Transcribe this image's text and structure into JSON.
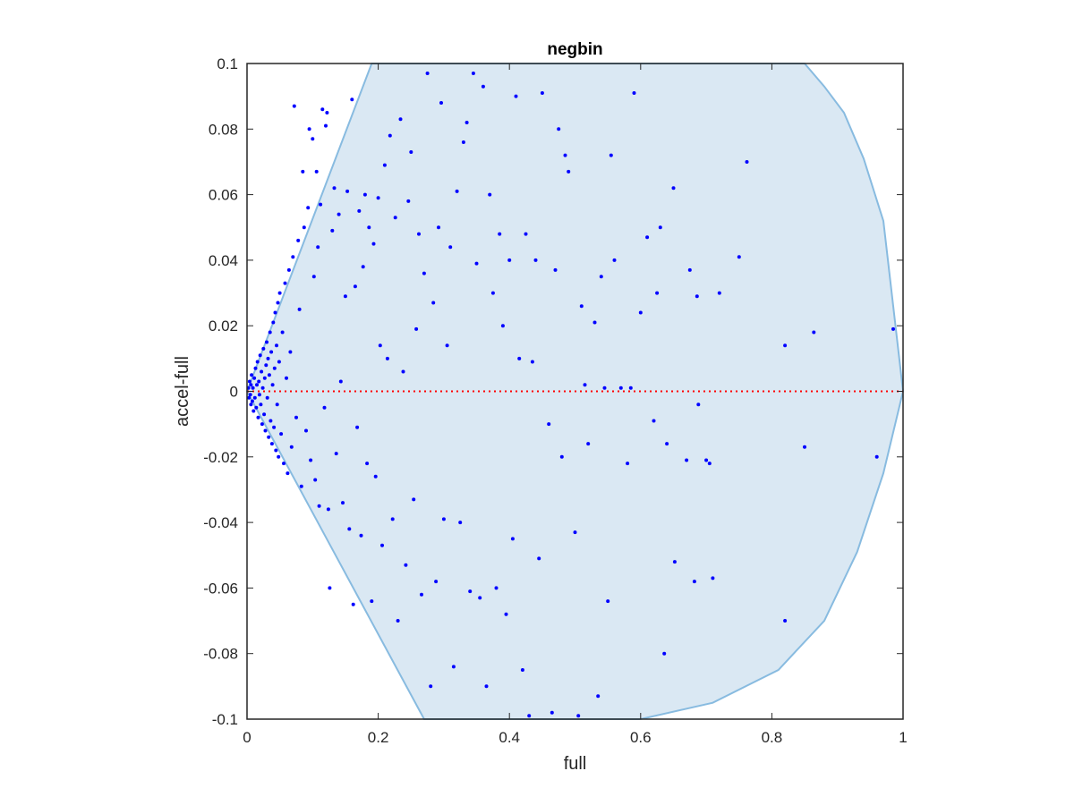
{
  "chart_data": {
    "type": "scatter",
    "title": "negbin",
    "xlabel": "full",
    "ylabel": "accel-full",
    "xlim": [
      0,
      1
    ],
    "ylim": [
      -0.1,
      0.1
    ],
    "xticks": [
      "0",
      "0.2",
      "0.4",
      "0.6",
      "0.8",
      "1"
    ],
    "yticks": [
      "0.1",
      "0.08",
      "0.06",
      "0.04",
      "0.02",
      "0",
      "-0.02",
      "-0.04",
      "-0.06",
      "-0.08",
      "-0.1"
    ],
    "grid": false,
    "legend": "none",
    "reference_line": {
      "y": 0,
      "style": "dotted",
      "color": "#ff0000"
    },
    "region": {
      "fill": "#dae8f3",
      "edge": "#88bbe0",
      "polygon": [
        [
          0,
          0
        ],
        [
          0.19,
          0.1
        ],
        [
          0.85,
          0.1
        ],
        [
          0.88,
          0.093
        ],
        [
          0.91,
          0.085
        ],
        [
          0.94,
          0.071
        ],
        [
          0.97,
          0.052
        ],
        [
          1,
          0
        ],
        [
          0.97,
          -0.025
        ],
        [
          0.93,
          -0.049
        ],
        [
          0.88,
          -0.07
        ],
        [
          0.81,
          -0.085
        ],
        [
          0.71,
          -0.095
        ],
        [
          0.6,
          -0.1
        ],
        [
          0.27,
          -0.1
        ]
      ]
    },
    "marker_color": "#0000ff",
    "series": [
      {
        "points": [
          [
            0.002,
            0.001
          ],
          [
            0.003,
            -0.002
          ],
          [
            0.004,
            0.003
          ],
          [
            0.005,
            -0.001
          ],
          [
            0.006,
            0.002
          ],
          [
            0.006,
            -0.004
          ],
          [
            0.007,
            0.005
          ],
          [
            0.008,
            -0.003
          ],
          [
            0.009,
            0.001
          ],
          [
            0.01,
            -0.006
          ],
          [
            0.011,
            0.004
          ],
          [
            0.012,
            -0.002
          ],
          [
            0.013,
            0.007
          ],
          [
            0.014,
            -0.005
          ],
          [
            0.015,
            0.002
          ],
          [
            0.016,
            0.009
          ],
          [
            0.017,
            -0.008
          ],
          [
            0.018,
            0.003
          ],
          [
            0.019,
            -0.001
          ],
          [
            0.02,
            0.011
          ],
          [
            0.021,
            -0.004
          ],
          [
            0.022,
            0.006
          ],
          [
            0.023,
            -0.01
          ],
          [
            0.024,
            0.001
          ],
          [
            0.025,
            0.013
          ],
          [
            0.026,
            -0.007
          ],
          [
            0.027,
            0.004
          ],
          [
            0.028,
            -0.012
          ],
          [
            0.029,
            0.008
          ],
          [
            0.03,
            0.015
          ],
          [
            0.031,
            -0.002
          ],
          [
            0.032,
            0.01
          ],
          [
            0.033,
            -0.014
          ],
          [
            0.034,
            0.005
          ],
          [
            0.035,
            0.018
          ],
          [
            0.036,
            -0.009
          ],
          [
            0.037,
            0.012
          ],
          [
            0.038,
            -0.016
          ],
          [
            0.039,
            0.002
          ],
          [
            0.04,
            0.021
          ],
          [
            0.041,
            -0.011
          ],
          [
            0.042,
            0.007
          ],
          [
            0.043,
            0.024
          ],
          [
            0.044,
            -0.018
          ],
          [
            0.045,
            0.014
          ],
          [
            0.046,
            -0.004
          ],
          [
            0.047,
            0.027
          ],
          [
            0.048,
            -0.02
          ],
          [
            0.049,
            0.009
          ],
          [
            0.05,
            0.03
          ],
          [
            0.052,
            -0.013
          ],
          [
            0.054,
            0.018
          ],
          [
            0.056,
            -0.022
          ],
          [
            0.058,
            0.033
          ],
          [
            0.06,
            0.004
          ],
          [
            0.062,
            -0.025
          ],
          [
            0.064,
            0.037
          ],
          [
            0.066,
            0.012
          ],
          [
            0.068,
            -0.017
          ],
          [
            0.07,
            0.041
          ],
          [
            0.072,
            0.087
          ],
          [
            0.075,
            -0.008
          ],
          [
            0.078,
            0.046
          ],
          [
            0.08,
            0.025
          ],
          [
            0.083,
            -0.029
          ],
          [
            0.085,
            0.067
          ],
          [
            0.087,
            0.05
          ],
          [
            0.09,
            -0.012
          ],
          [
            0.093,
            0.056
          ],
          [
            0.095,
            0.08
          ],
          [
            0.097,
            -0.021
          ],
          [
            0.1,
            0.077
          ],
          [
            0.102,
            0.035
          ],
          [
            0.104,
            -0.027
          ],
          [
            0.106,
            0.067
          ],
          [
            0.108,
            0.044
          ],
          [
            0.11,
            -0.035
          ],
          [
            0.112,
            0.057
          ],
          [
            0.115,
            0.086
          ],
          [
            0.118,
            -0.005
          ],
          [
            0.12,
            0.081
          ],
          [
            0.122,
            0.085
          ],
          [
            0.124,
            -0.036
          ],
          [
            0.126,
            -0.06
          ],
          [
            0.13,
            0.049
          ],
          [
            0.133,
            0.062
          ],
          [
            0.136,
            -0.019
          ],
          [
            0.14,
            0.054
          ],
          [
            0.143,
            0.003
          ],
          [
            0.146,
            -0.034
          ],
          [
            0.15,
            0.029
          ],
          [
            0.153,
            0.061
          ],
          [
            0.156,
            -0.042
          ],
          [
            0.16,
            0.089
          ],
          [
            0.162,
            -0.065
          ],
          [
            0.165,
            0.032
          ],
          [
            0.168,
            -0.011
          ],
          [
            0.171,
            0.055
          ],
          [
            0.174,
            -0.044
          ],
          [
            0.177,
            0.038
          ],
          [
            0.18,
            0.06
          ],
          [
            0.183,
            -0.022
          ],
          [
            0.186,
            0.05
          ],
          [
            0.19,
            -0.064
          ],
          [
            0.193,
            0.045
          ],
          [
            0.196,
            -0.026
          ],
          [
            0.2,
            0.059
          ],
          [
            0.203,
            0.014
          ],
          [
            0.206,
            -0.047
          ],
          [
            0.21,
            0.069
          ],
          [
            0.214,
            0.01
          ],
          [
            0.218,
            0.078
          ],
          [
            0.222,
            -0.039
          ],
          [
            0.226,
            0.053
          ],
          [
            0.23,
            -0.07
          ],
          [
            0.234,
            0.083
          ],
          [
            0.238,
            0.006
          ],
          [
            0.242,
            -0.053
          ],
          [
            0.246,
            0.058
          ],
          [
            0.25,
            0.073
          ],
          [
            0.254,
            -0.033
          ],
          [
            0.258,
            0.019
          ],
          [
            0.262,
            0.048
          ],
          [
            0.266,
            -0.062
          ],
          [
            0.27,
            0.036
          ],
          [
            0.275,
            0.097
          ],
          [
            0.28,
            -0.09
          ],
          [
            0.284,
            0.027
          ],
          [
            0.288,
            -0.058
          ],
          [
            0.292,
            0.05
          ],
          [
            0.296,
            0.088
          ],
          [
            0.3,
            -0.039
          ],
          [
            0.305,
            0.014
          ],
          [
            0.31,
            0.044
          ],
          [
            0.315,
            -0.084
          ],
          [
            0.32,
            0.061
          ],
          [
            0.325,
            -0.04
          ],
          [
            0.33,
            0.076
          ],
          [
            0.335,
            0.082
          ],
          [
            0.34,
            -0.061
          ],
          [
            0.345,
            0.097
          ],
          [
            0.35,
            0.039
          ],
          [
            0.355,
            -0.063
          ],
          [
            0.36,
            0.093
          ],
          [
            0.365,
            -0.09
          ],
          [
            0.37,
            0.06
          ],
          [
            0.375,
            0.03
          ],
          [
            0.38,
            -0.06
          ],
          [
            0.385,
            0.048
          ],
          [
            0.39,
            0.02
          ],
          [
            0.395,
            -0.068
          ],
          [
            0.4,
            0.04
          ],
          [
            0.405,
            -0.045
          ],
          [
            0.41,
            0.09
          ],
          [
            0.415,
            0.01
          ],
          [
            0.42,
            -0.085
          ],
          [
            0.425,
            0.048
          ],
          [
            0.43,
            -0.099
          ],
          [
            0.435,
            0.009
          ],
          [
            0.44,
            0.04
          ],
          [
            0.445,
            -0.051
          ],
          [
            0.45,
            0.091
          ],
          [
            0.46,
            -0.01
          ],
          [
            0.465,
            -0.098
          ],
          [
            0.47,
            0.037
          ],
          [
            0.475,
            0.08
          ],
          [
            0.48,
            -0.02
          ],
          [
            0.485,
            0.072
          ],
          [
            0.49,
            0.067
          ],
          [
            0.5,
            -0.043
          ],
          [
            0.505,
            -0.099
          ],
          [
            0.51,
            0.026
          ],
          [
            0.515,
            0.002
          ],
          [
            0.52,
            -0.016
          ],
          [
            0.53,
            0.021
          ],
          [
            0.535,
            -0.093
          ],
          [
            0.54,
            0.035
          ],
          [
            0.545,
            0.001
          ],
          [
            0.55,
            -0.064
          ],
          [
            0.555,
            0.072
          ],
          [
            0.56,
            0.04
          ],
          [
            0.57,
            0.001
          ],
          [
            0.58,
            -0.022
          ],
          [
            0.585,
            0.001
          ],
          [
            0.59,
            0.091
          ],
          [
            0.6,
            0.024
          ],
          [
            0.61,
            0.047
          ],
          [
            0.62,
            -0.009
          ],
          [
            0.625,
            0.03
          ],
          [
            0.63,
            0.05
          ],
          [
            0.636,
            -0.08
          ],
          [
            0.64,
            -0.016
          ],
          [
            0.65,
            0.062
          ],
          [
            0.652,
            -0.052
          ],
          [
            0.67,
            -0.021
          ],
          [
            0.675,
            0.037
          ],
          [
            0.682,
            -0.058
          ],
          [
            0.686,
            0.029
          ],
          [
            0.688,
            -0.004
          ],
          [
            0.7,
            -0.021
          ],
          [
            0.705,
            -0.022
          ],
          [
            0.71,
            -0.057
          ],
          [
            0.72,
            0.03
          ],
          [
            0.75,
            0.041
          ],
          [
            0.762,
            0.07
          ],
          [
            0.82,
            -0.07
          ],
          [
            0.82,
            0.014
          ],
          [
            0.85,
            -0.017
          ],
          [
            0.864,
            0.018
          ],
          [
            0.96,
            -0.02
          ],
          [
            0.985,
            0.019
          ]
        ]
      }
    ]
  }
}
